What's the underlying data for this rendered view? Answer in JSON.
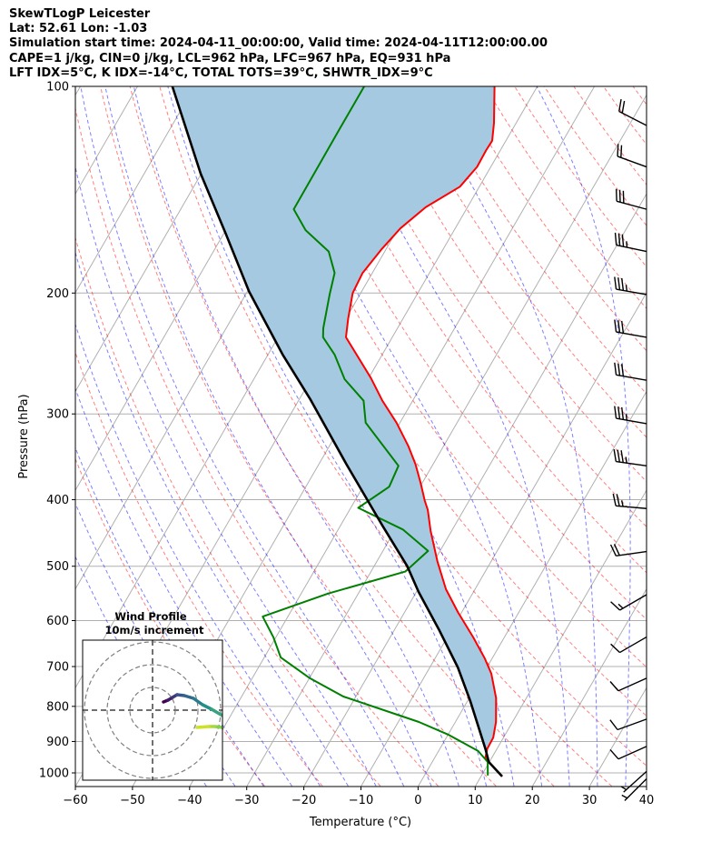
{
  "header": {
    "line1": "SkewTLogP Leicester",
    "line2": "Lat: 52.61   Lon: -1.03",
    "line3": "Simulation start time: 2024-04-11_00:00:00, Valid time: 2024-04-11T12:00:00.00",
    "line4": "CAPE=1 j/kg, CIN=0 j/kg, LCL=962 hPa, LFC=967 hPa, EQ=931 hPa",
    "line5": "LFT IDX=5°C, K IDX=-14°C, TOTAL TOTS=39°C, SHWTR_IDX=9°C"
  },
  "chart_data": {
    "type": "line",
    "title": "SkewTLogP Leicester",
    "xlabel": "Temperature (°C)",
    "ylabel": "Pressure (hPa)",
    "xlim": [
      -60,
      40
    ],
    "ylim": [
      1045,
      100
    ],
    "xticks": [
      "−60",
      "−50",
      "−40",
      "−30",
      "−20",
      "−10",
      "0",
      "10",
      "20",
      "30",
      "40"
    ],
    "xtick_values": [
      -60,
      -50,
      -40,
      -30,
      -20,
      -10,
      0,
      10,
      20,
      30,
      40
    ],
    "yticks": [
      "100",
      "200",
      "300",
      "400",
      "500",
      "600",
      "700",
      "800",
      "900",
      "1000"
    ],
    "ytick_values": [
      100,
      200,
      300,
      400,
      500,
      600,
      700,
      800,
      900,
      1000
    ],
    "grid": true,
    "series": [
      {
        "name": "Temperature",
        "color": "#ff0000",
        "points": [
          [
            1012,
            13.7
          ],
          [
            952,
            8.9
          ],
          [
            923,
            8.3
          ],
          [
            888,
            8.2
          ],
          [
            843,
            7.1
          ],
          [
            778,
            4.7
          ],
          [
            717,
            1.4
          ],
          [
            681,
            -1.3
          ],
          [
            635,
            -5.4
          ],
          [
            584,
            -10.6
          ],
          [
            540,
            -15.1
          ],
          [
            492,
            -19.4
          ],
          [
            444,
            -23.7
          ],
          [
            414,
            -26.3
          ],
          [
            401,
            -27.8
          ],
          [
            378,
            -30.3
          ],
          [
            355,
            -33.1
          ],
          [
            334,
            -36.2
          ],
          [
            309,
            -40.6
          ],
          [
            287,
            -45.3
          ],
          [
            266,
            -49.6
          ],
          [
            232,
            -58.1
          ],
          [
            218,
            -59.6
          ],
          [
            200,
            -61.4
          ],
          [
            187,
            -61.7
          ],
          [
            173,
            -60.8
          ],
          [
            161,
            -59.6
          ],
          [
            150,
            -57.3
          ],
          [
            140,
            -53.4
          ],
          [
            131,
            -52.4
          ],
          [
            124,
            -52.5
          ],
          [
            120,
            -52.4
          ],
          [
            113,
            -53.9
          ],
          [
            100,
            -57.5
          ]
        ]
      },
      {
        "name": "Dewpoint",
        "color": "#008000",
        "points": [
          [
            1009,
            11.1
          ],
          [
            964,
            9.7
          ],
          [
            929,
            6.9
          ],
          [
            880,
            0.1
          ],
          [
            843,
            -6.4
          ],
          [
            774,
            -22.2
          ],
          [
            728,
            -29.9
          ],
          [
            679,
            -37.1
          ],
          [
            635,
            -40.4
          ],
          [
            592,
            -44.4
          ],
          [
            548,
            -35.3
          ],
          [
            509,
            -24.0
          ],
          [
            475,
            -22.1
          ],
          [
            442,
            -28.7
          ],
          [
            411,
            -38.7
          ],
          [
            383,
            -35.4
          ],
          [
            357,
            -35.9
          ],
          [
            309,
            -46.0
          ],
          [
            287,
            -48.6
          ],
          [
            267,
            -54.1
          ],
          [
            246,
            -58.3
          ],
          [
            232,
            -62.1
          ],
          [
            225,
            -63.0
          ],
          [
            201,
            -65.3
          ],
          [
            187,
            -66.6
          ],
          [
            174,
            -69.8
          ],
          [
            162,
            -76.0
          ],
          [
            151,
            -80.2
          ],
          [
            115,
            -80.3
          ],
          [
            100,
            -80.3
          ]
        ]
      },
      {
        "name": "Parcel profile",
        "color": "#000000",
        "points": [
          [
            1012,
            13.7
          ],
          [
            964,
            9.9
          ],
          [
            923,
            8.0
          ],
          [
            786,
            0.5
          ],
          [
            702,
            -5.1
          ],
          [
            621,
            -12.0
          ],
          [
            545,
            -19.6
          ],
          [
            500,
            -24.2
          ],
          [
            436,
            -32.7
          ],
          [
            355,
            -45.2
          ],
          [
            285,
            -58.2
          ],
          [
            246,
            -67.4
          ],
          [
            199,
            -79.7
          ],
          [
            164,
            -89.6
          ],
          [
            134,
            -100.1
          ],
          [
            100,
            -113.9
          ]
        ]
      }
    ],
    "shading": {
      "between": [
        "Parcel profile",
        "Temperature"
      ],
      "color": "#a5c9e1"
    }
  },
  "barbs": [
    {
      "p": 114,
      "speed_kt": 20,
      "dir": 297
    },
    {
      "p": 131,
      "speed_kt": 20,
      "dir": 290
    },
    {
      "p": 151,
      "speed_kt": 30,
      "dir": 285
    },
    {
      "p": 174,
      "speed_kt": 35,
      "dir": 282
    },
    {
      "p": 201,
      "speed_kt": 35,
      "dir": 280
    },
    {
      "p": 232,
      "speed_kt": 30,
      "dir": 280
    },
    {
      "p": 268,
      "speed_kt": 30,
      "dir": 280
    },
    {
      "p": 310,
      "speed_kt": 35,
      "dir": 280
    },
    {
      "p": 357,
      "speed_kt": 35,
      "dir": 278
    },
    {
      "p": 412,
      "speed_kt": 25,
      "dir": 275
    },
    {
      "p": 476,
      "speed_kt": 20,
      "dir": 262
    },
    {
      "p": 550,
      "speed_kt": 15,
      "dir": 240
    },
    {
      "p": 634,
      "speed_kt": 10,
      "dir": 240
    },
    {
      "p": 728,
      "speed_kt": 10,
      "dir": 246
    },
    {
      "p": 835,
      "speed_kt": 10,
      "dir": 250
    },
    {
      "p": 915,
      "speed_kt": 10,
      "dir": 246
    },
    {
      "p": 995,
      "speed_kt": 5,
      "dir": 228
    },
    {
      "p": 1020,
      "speed_kt": 5,
      "dir": 225
    }
  ],
  "hodograph": {
    "title": "Wind Profile",
    "subtitle": "10m/s increment",
    "rings_ms": [
      10,
      20,
      30
    ],
    "points": [
      [
        4.8,
        3.6
      ],
      [
        6.8,
        4.4
      ],
      [
        8.8,
        5.6
      ],
      [
        10.8,
        6.8
      ],
      [
        14,
        6.4
      ],
      [
        18,
        5.2
      ],
      [
        22,
        2.4
      ],
      [
        26,
        0.4
      ],
      [
        30.8,
        -2.4
      ],
      [
        32.8,
        -3.6
      ],
      [
        30.8,
        -7.6
      ],
      [
        27.5,
        -7.2
      ],
      [
        24.8,
        -7.2
      ],
      [
        19.6,
        -7.6
      ]
    ]
  }
}
